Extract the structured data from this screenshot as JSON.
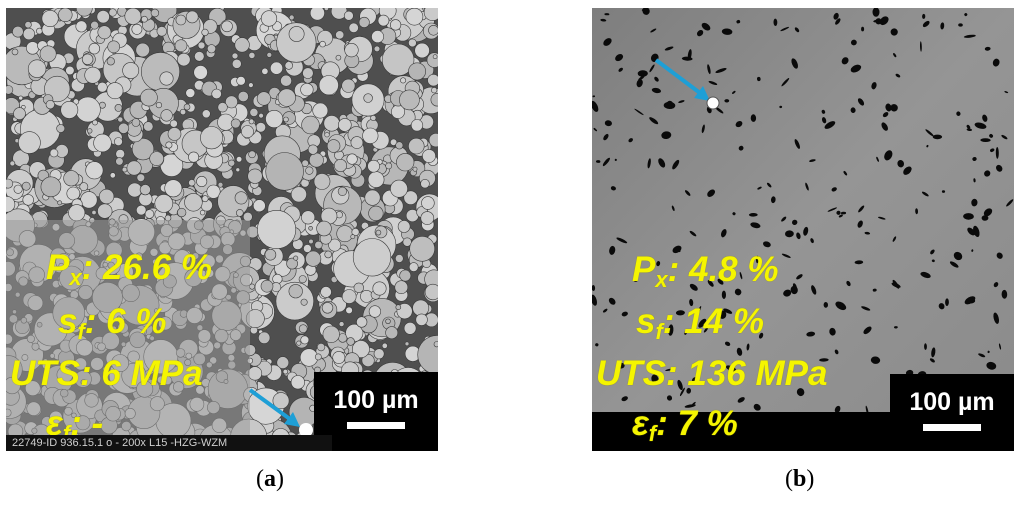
{
  "panel_a": {
    "px_label": "P",
    "px_sub": "x",
    "px_value": ": 26.6 %",
    "sf_label": "s",
    "sf_sub": "f",
    "sf_value": ": 6 %",
    "uts": "UTS: 6 MPa",
    "ef_label": "ε",
    "ef_sub": "f",
    "ef_value": ": -",
    "scale": "100 µm",
    "footer": "22749-ID 936.15.1  o - 200x L15  -HZG-WZM",
    "caption_open": "(",
    "caption_letter": "a",
    "caption_close": ")"
  },
  "panel_b": {
    "px_label": "P",
    "px_sub": "x",
    "px_value": ": 4.8 %",
    "sf_label": "s",
    "sf_sub": "f",
    "sf_value": ": 14 %",
    "uts": "UTS: 136 MPa",
    "ef_label": "ε",
    "ef_sub": "f",
    "ef_value": ": 7 %",
    "scale": "100 µm",
    "caption_open": "(",
    "caption_letter": "b",
    "caption_close": ")"
  },
  "colors": {
    "annotation": "#f5f500",
    "arrow": "#1e9fd6",
    "particle": "#c4c4c4",
    "matrix_dense": "#8f8f8f",
    "pore": "#000000"
  },
  "icons": [
    "arrow-icon",
    "marker-dot-icon"
  ]
}
